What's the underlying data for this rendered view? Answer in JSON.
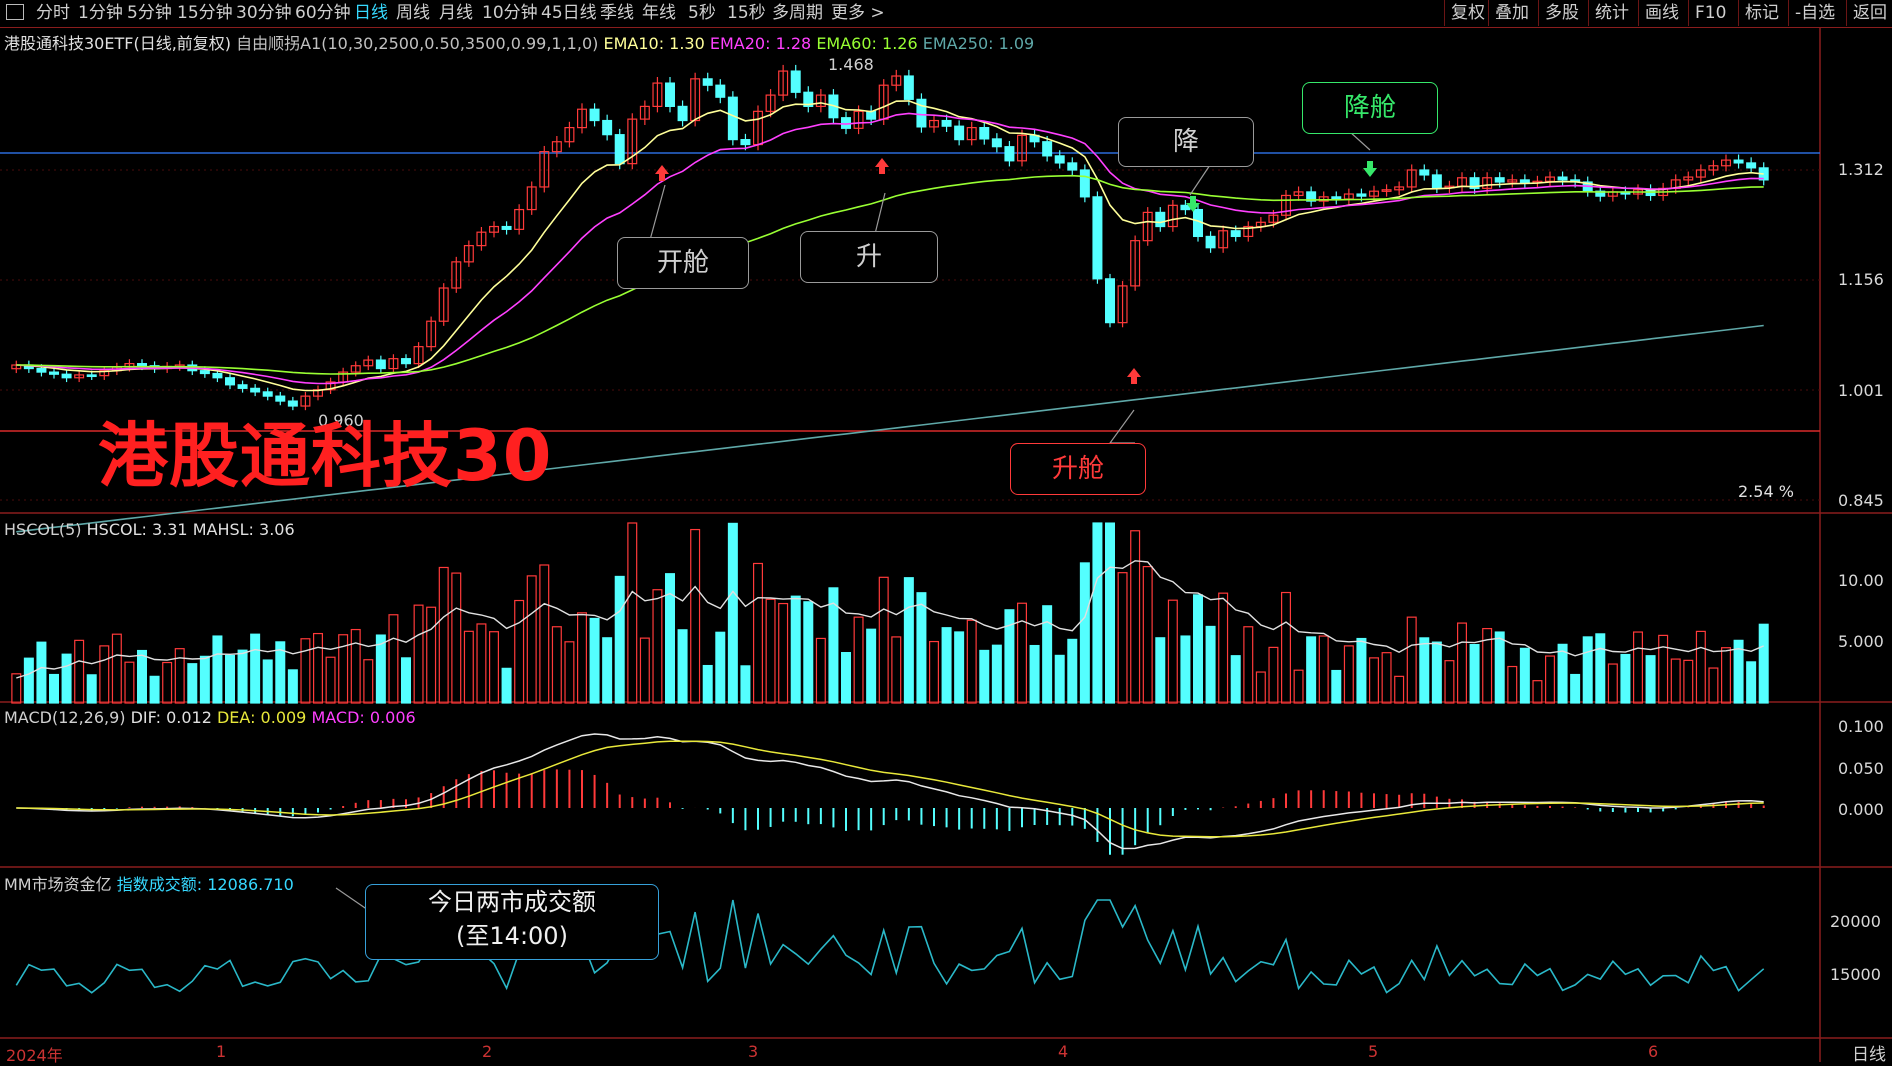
{
  "toolbar": {
    "periods": [
      "分时",
      "1分钟",
      "5分钟",
      "15分钟",
      "30分钟",
      "60分钟",
      "日线",
      "周线",
      "月线",
      "10分钟",
      "45日线",
      "季线",
      "年线",
      "5秒",
      "15秒",
      "多周期",
      "更多 >"
    ],
    "active_period": "日线",
    "tools": [
      "复权",
      "叠加",
      "多股",
      "统计",
      "画线",
      "F10",
      "标记",
      "-自选",
      "返回"
    ]
  },
  "main_panel": {
    "title": "港股通科技30ETF(日线,前复权)",
    "indicator": "自由顺拐A1(10,30,2500,0.50,3500,0.99,1,1,0)",
    "ema10": "EMA10: 1.30",
    "ema20": "EMA20: 1.28",
    "ema60": "EMA60: 1.26",
    "ema250": "EMA250: 1.09",
    "high_label": "1.468",
    "low_label": "0.960",
    "pct_label": "2.54 %",
    "axis": [
      "1.312",
      "1.156",
      "1.001",
      "0.845"
    ],
    "big_title": "港股通科技30",
    "callouts": {
      "open1": "开舱",
      "up": "升",
      "down": "降",
      "reduce": "降舱",
      "raise": "升舱"
    }
  },
  "volume_panel": {
    "title": "HSCOL(5)",
    "hscol": "HSCOL: 3.31",
    "mahsl": "MAHSL: 3.06",
    "axis": [
      "10.00",
      "5.000"
    ]
  },
  "macd_panel": {
    "title": "MACD(12,26,9)",
    "dif": "DIF: 0.012",
    "dea": "DEA: 0.009",
    "macd": "MACD: 0.006",
    "axis": [
      "0.100",
      "0.050",
      "0.000"
    ]
  },
  "mm_panel": {
    "title": "MM市场资金亿",
    "label": "指数成交额:",
    "value": "12086.710",
    "axis": [
      "20000",
      "15000"
    ],
    "note_line1": "今日两市成交额",
    "note_line2": "(至14:00)"
  },
  "xaxis": {
    "labels": [
      "2024年",
      "1",
      "2",
      "3",
      "4",
      "5",
      "6"
    ],
    "period_label": "日线"
  },
  "colors": {
    "up": "#ff3a3a",
    "down": "#54ffff",
    "ema10": "#ffff99",
    "ema20": "#ff40ff",
    "ema60": "#99ff33",
    "ema250": "#5fa8a8",
    "grid": "#8a1d1d"
  },
  "chart_data": {
    "type": "candlestick",
    "title": "港股通科技30ETF(日线,前复权)",
    "y_ticks": [
      1.312,
      1.156,
      1.001,
      0.845
    ],
    "close": [
      1.036,
      1.031,
      1.026,
      1.023,
      1.018,
      1.022,
      1.021,
      1.028,
      1.033,
      1.038,
      1.035,
      1.031,
      1.034,
      1.036,
      1.028,
      1.024,
      1.018,
      1.008,
      1.003,
      0.998,
      0.992,
      0.985,
      0.978,
      0.992,
      1.001,
      1.012,
      1.026,
      1.035,
      1.043,
      1.031,
      1.045,
      1.038,
      1.062,
      1.098,
      1.145,
      1.182,
      1.205,
      1.224,
      1.232,
      1.228,
      1.256,
      1.288,
      1.338,
      1.352,
      1.372,
      1.398,
      1.382,
      1.362,
      1.321,
      1.384,
      1.402,
      1.435,
      1.402,
      1.382,
      1.441,
      1.432,
      1.415,
      1.355,
      1.348,
      1.395,
      1.418,
      1.452,
      1.422,
      1.402,
      1.418,
      1.386,
      1.371,
      1.395,
      1.384,
      1.432,
      1.445,
      1.412,
      1.373,
      1.382,
      1.374,
      1.355,
      1.372,
      1.356,
      1.345,
      1.325,
      1.361,
      1.352,
      1.332,
      1.322,
      1.312,
      1.274,
      1.158,
      1.096,
      1.148,
      1.212,
      1.252,
      1.232,
      1.262,
      1.256,
      1.218,
      1.202,
      1.226,
      1.218,
      1.232,
      1.238,
      1.248,
      1.276,
      1.281,
      1.268,
      1.274,
      1.271,
      1.278,
      1.275,
      1.282,
      1.284,
      1.288,
      1.312,
      1.305,
      1.287,
      1.289,
      1.301,
      1.286,
      1.301,
      1.295,
      1.298,
      1.294,
      1.296,
      1.302,
      1.298,
      1.295,
      1.282,
      1.275,
      1.281,
      1.278,
      1.284,
      1.276,
      1.286,
      1.298,
      1.302,
      1.312,
      1.318,
      1.326,
      1.322,
      1.315,
      1.298
    ]
  }
}
